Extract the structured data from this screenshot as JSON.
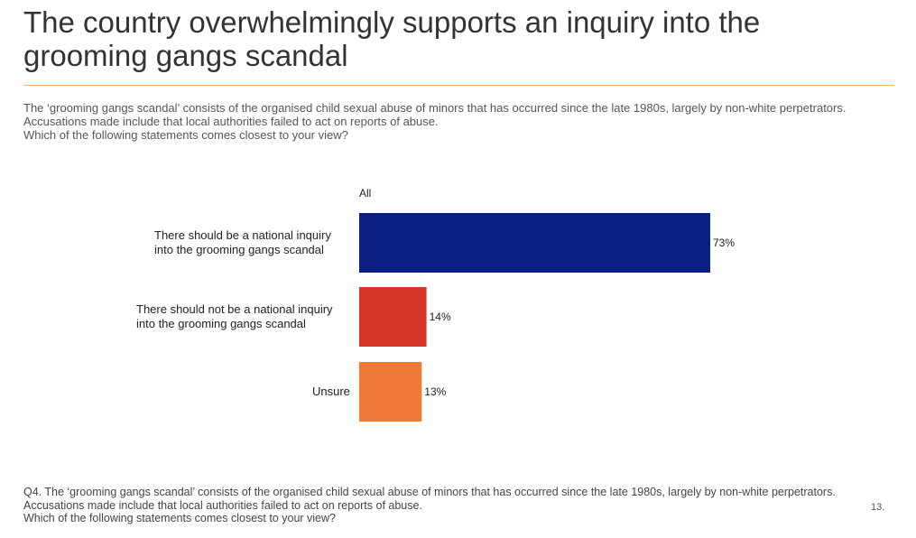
{
  "title": "The country overwhelmingly supports an inquiry into the grooming gangs scandal",
  "intro": {
    "line1": "The ‘grooming gangs scandal’ consists of the organised child sexual abuse of minors that has occurred since the late 1980s, largely by non-white perpetrators. Accusations made include that local authorities failed to act on reports of abuse.",
    "line2": "Which of the following statements comes closest to your view?"
  },
  "chart_data": {
    "type": "bar",
    "orientation": "horizontal",
    "series_label": "All",
    "categories": [
      [
        "There should be a national inquiry",
        "into the grooming gangs scandal"
      ],
      [
        "There should not be a national inquiry",
        "into the grooming gangs scandal"
      ],
      [
        "Unsure"
      ]
    ],
    "values": [
      73,
      14,
      13
    ],
    "value_labels": [
      "73%",
      "14%",
      "13%"
    ],
    "colors": [
      "#0a1f82",
      "#d7372b",
      "#f07838"
    ],
    "xlim": [
      0,
      100
    ],
    "grid": false
  },
  "footnote": {
    "line1": "Q4. The ‘grooming gangs scandal’ consists of the organised child sexual abuse of minors that has occurred since the late 1980s, largely by non-white perpetrators. Accusations made include that local authorities failed to act on reports of abuse.",
    "line2": "Which of the following statements comes closest to your view?"
  },
  "page_number": "13."
}
